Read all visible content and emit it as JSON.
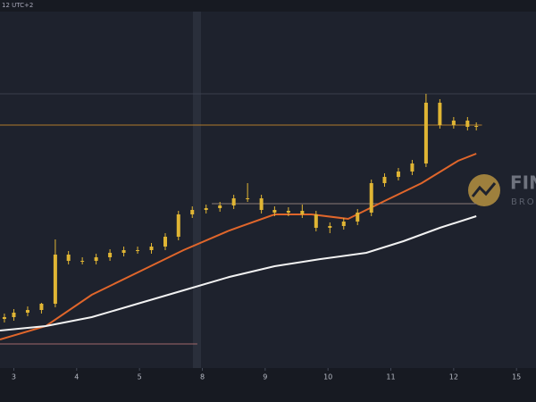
{
  "chart_data": {
    "type": "candlestick",
    "timezone_label": "12 UTC+2",
    "watermark": {
      "name": "FIN",
      "sub": "BROK"
    },
    "xlim": [
      -0.22,
      8.31
    ],
    "xticks": [
      {
        "value": 0,
        "label": "3"
      },
      {
        "value": 1,
        "label": "4"
      },
      {
        "value": 2,
        "label": "5"
      },
      {
        "value": 3,
        "label": "8"
      },
      {
        "value": 4,
        "label": "9"
      },
      {
        "value": 5,
        "label": "10"
      },
      {
        "value": 6,
        "label": "11"
      },
      {
        "value": 7,
        "label": "12"
      },
      {
        "value": 8,
        "label": "15"
      }
    ],
    "ylim": [
      0,
      100
    ],
    "candles": {
      "color": "#e0b534",
      "x": [
        -0.15,
        0,
        0.22,
        0.44,
        0.66,
        0.87,
        1.09,
        1.31,
        1.53,
        1.75,
        1.97,
        2.19,
        2.41,
        2.62,
        2.84,
        3.06,
        3.28,
        3.5,
        3.72,
        3.94,
        4.15,
        4.37,
        4.59,
        4.81,
        5.03,
        5.25,
        5.47,
        5.69,
        5.9,
        6.12,
        6.34,
        6.56,
        6.78,
        7.0,
        7.22,
        7.36
      ],
      "open": [
        14.5,
        15,
        16.25,
        17,
        18.75,
        32.5,
        30.75,
        30.75,
        31.75,
        33,
        33.75,
        33.75,
        34.75,
        37.5,
        43.75,
        45,
        45.5,
        46.25,
        48.25,
        48.25,
        45,
        44.25,
        44.75,
        43.75,
        40,
        40.5,
        41.75,
        44.25,
        52.5,
        54.25,
        55.75,
        58,
        75,
        68.75,
        70,
        68.25
      ],
      "high": [
        16,
        17.25,
        18,
        19,
        36.75,
        33.5,
        31.75,
        32.75,
        34,
        34.75,
        34.75,
        35.75,
        38.5,
        44.75,
        46,
        46.5,
        47.25,
        49.25,
        52.5,
        49.25,
        46,
        45.75,
        46.5,
        44.75,
        41.5,
        42.75,
        45.25,
        53.5,
        55.25,
        56.75,
        59,
        77.5,
        76,
        71,
        71,
        69.5
      ],
      "low": [
        13.5,
        14,
        15.25,
        16,
        17.75,
        29.75,
        29.75,
        29.75,
        30.75,
        32,
        32.75,
        32.75,
        33.75,
        36.5,
        42.75,
        44,
        44.5,
        45.25,
        47.25,
        44,
        43.25,
        43.25,
        42.75,
        39,
        38.5,
        39.5,
        40.75,
        43.25,
        51.5,
        53.25,
        54.75,
        57,
        67.75,
        67.75,
        67.25,
        67.25
      ],
      "close": [
        15,
        16.25,
        17,
        18.75,
        32.5,
        30.75,
        30.75,
        31.75,
        33,
        33.75,
        33.75,
        34.75,
        37.5,
        43.75,
        45,
        45.5,
        46.25,
        48.25,
        48.25,
        45,
        44.25,
        44.75,
        43.75,
        40,
        40.5,
        41.75,
        44.25,
        52.5,
        54.25,
        55.75,
        58,
        75,
        68.75,
        70,
        68.25,
        68.5
      ]
    },
    "lines": [
      {
        "color": "#e0662b",
        "x": [
          -0.22,
          0.51,
          1.24,
          1.97,
          2.7,
          3.43,
          4.15,
          4.74,
          5.32,
          5.9,
          6.49,
          7.07,
          7.36
        ],
        "values": [
          8.75,
          12.5,
          21.25,
          27.5,
          33.75,
          39.25,
          43.75,
          43.75,
          42.5,
          47.5,
          52.5,
          58.75,
          60.75
        ]
      },
      {
        "color": "#f2f2f2",
        "x": [
          -0.22,
          0.51,
          1.24,
          1.97,
          2.7,
          3.43,
          4.15,
          4.88,
          5.61,
          6.2,
          6.78,
          7.36
        ],
        "values": [
          11.25,
          12.5,
          15,
          18.75,
          22.5,
          26.25,
          29.25,
          31.25,
          33,
          36.25,
          40,
          43.25
        ]
      }
    ],
    "levels": [
      {
        "value": 68.75,
        "color": "#b07a2a",
        "xlim": [
          -0.22,
          7.45
        ]
      },
      {
        "value": 77.5,
        "color": "#3a3f4c",
        "xlim": [
          -0.22,
          8.31
        ]
      },
      {
        "value": 46.75,
        "color": "#8a7a78",
        "xlim": [
          3.15,
          7.36
        ]
      },
      {
        "value": 7.5,
        "color": "#a0686b",
        "xlim": [
          -0.22,
          2.92
        ]
      }
    ]
  }
}
